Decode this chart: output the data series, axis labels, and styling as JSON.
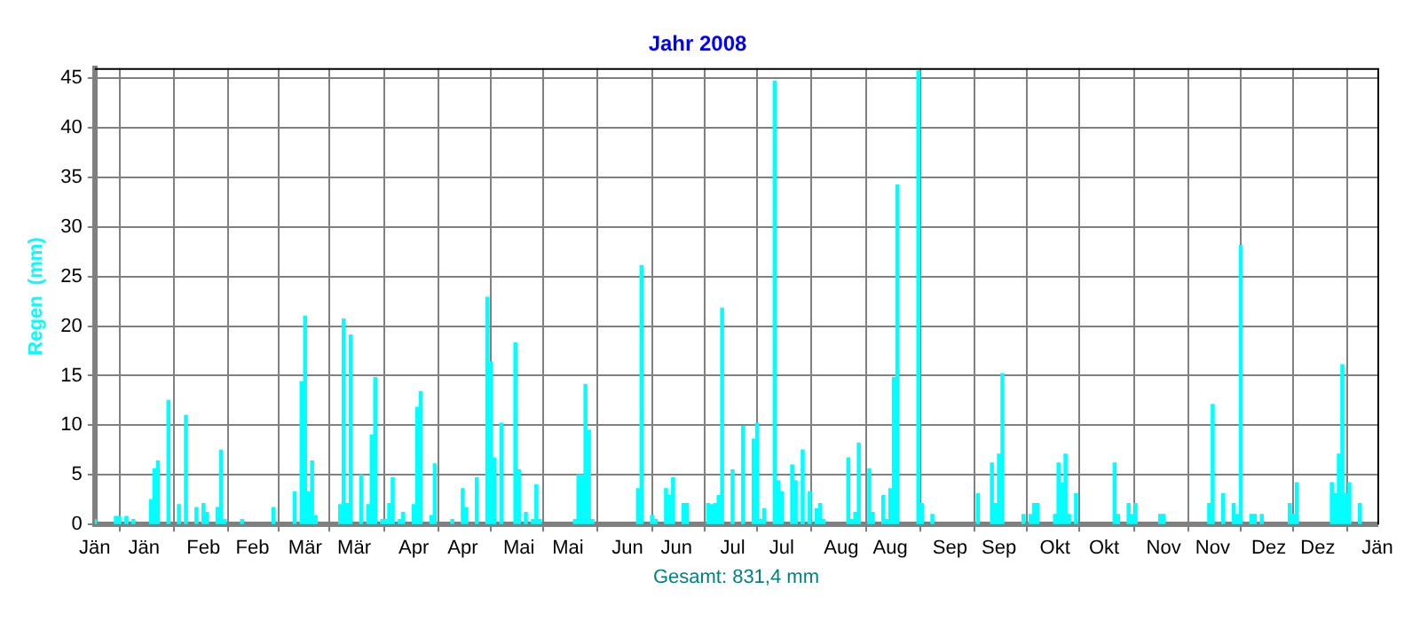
{
  "chart_data": {
    "type": "bar",
    "title": "Jahr 2008",
    "xlabel": "Gesamt: 831,4 mm",
    "ylabel": "Regen  (mm)",
    "x": [
      "2008-01-01",
      "2008-01-07",
      "2008-01-08",
      "2008-01-10",
      "2008-01-12",
      "2008-01-17",
      "2008-01-18",
      "2008-01-19",
      "2008-01-22",
      "2008-01-25",
      "2008-01-27",
      "2008-01-30",
      "2008-02-01",
      "2008-02-02",
      "2008-02-05",
      "2008-02-06",
      "2008-02-07",
      "2008-02-12",
      "2008-02-21",
      "2008-02-27",
      "2008-02-29",
      "2008-03-01",
      "2008-03-02",
      "2008-03-03",
      "2008-03-04",
      "2008-03-11",
      "2008-03-12",
      "2008-03-13",
      "2008-03-14",
      "2008-03-17",
      "2008-03-19",
      "2008-03-20",
      "2008-03-21",
      "2008-03-23",
      "2008-03-24",
      "2008-03-25",
      "2008-03-26",
      "2008-03-28",
      "2008-03-29",
      "2008-04-01",
      "2008-04-02",
      "2008-04-03",
      "2008-04-06",
      "2008-04-07",
      "2008-04-12",
      "2008-04-15",
      "2008-04-16",
      "2008-04-19",
      "2008-04-22",
      "2008-04-23",
      "2008-04-24",
      "2008-04-26",
      "2008-04-30",
      "2008-05-01",
      "2008-05-03",
      "2008-05-05",
      "2008-05-06",
      "2008-05-07",
      "2008-05-17",
      "2008-05-18",
      "2008-05-19",
      "2008-05-20",
      "2008-05-21",
      "2008-05-22",
      "2008-06-04",
      "2008-06-05",
      "2008-06-08",
      "2008-06-09",
      "2008-06-12",
      "2008-06-13",
      "2008-06-14",
      "2008-06-17",
      "2008-06-18",
      "2008-06-24",
      "2008-06-25",
      "2008-06-26",
      "2008-06-27",
      "2008-06-28",
      "2008-07-01",
      "2008-07-04",
      "2008-07-07",
      "2008-07-08",
      "2008-07-09",
      "2008-07-10",
      "2008-07-13",
      "2008-07-14",
      "2008-07-15",
      "2008-07-18",
      "2008-07-19",
      "2008-07-21",
      "2008-07-23",
      "2008-07-25",
      "2008-07-26",
      "2008-07-27",
      "2008-08-03",
      "2008-08-04",
      "2008-08-05",
      "2008-08-06",
      "2008-08-09",
      "2008-08-10",
      "2008-08-13",
      "2008-08-14",
      "2008-08-15",
      "2008-08-16",
      "2008-08-17",
      "2008-08-23",
      "2008-08-24",
      "2008-08-27",
      "2008-09-09",
      "2008-09-13",
      "2008-09-14",
      "2008-09-15",
      "2008-09-16",
      "2008-09-22",
      "2008-09-24",
      "2008-09-25",
      "2008-09-26",
      "2008-10-01",
      "2008-10-02",
      "2008-10-03",
      "2008-10-04",
      "2008-10-05",
      "2008-10-07",
      "2008-10-18",
      "2008-10-19",
      "2008-10-22",
      "2008-10-23",
      "2008-10-24",
      "2008-10-31",
      "2008-11-01",
      "2008-11-14",
      "2008-11-15",
      "2008-11-18",
      "2008-11-21",
      "2008-11-22",
      "2008-11-23",
      "2008-11-26",
      "2008-11-27",
      "2008-11-29",
      "2008-12-07",
      "2008-12-08",
      "2008-12-09",
      "2008-12-19",
      "2008-12-20",
      "2008-12-21",
      "2008-12-22",
      "2008-12-23",
      "2008-12-24",
      "2008-12-27"
    ],
    "values": [
      0.5,
      0.8,
      0.8,
      0.8,
      0.5,
      2.5,
      5.6,
      6.4,
      12.5,
      2,
      11,
      1.7,
      2.1,
      1.2,
      1.7,
      7.5,
      0.5,
      0.5,
      1.7,
      3.3,
      14.4,
      21,
      3.3,
      6.4,
      0.9,
      2,
      20.7,
      2.1,
      19.1,
      5,
      2,
      9,
      14.8,
      0.5,
      0.5,
      2.1,
      4.7,
      0.5,
      1.2,
      2,
      11.8,
      13.4,
      0.9,
      6.1,
      0.5,
      3.6,
      1.7,
      4.7,
      22.9,
      16.4,
      6.7,
      10.2,
      18.3,
      5.5,
      1.2,
      0.5,
      4,
      0.5,
      0.5,
      5,
      5,
      14.1,
      9.5,
      0.5,
      3.6,
      26.1,
      0.9,
      0.5,
      3.6,
      2.9,
      4.7,
      2.1,
      2.1,
      2.1,
      2,
      2.1,
      2.9,
      21.8,
      5.5,
      9.9,
      8.6,
      10.2,
      0.5,
      1.6,
      44.7,
      4.4,
      3.3,
      6,
      4.4,
      7.5,
      3.3,
      1.6,
      2.1,
      0.5,
      6.7,
      0.5,
      1.2,
      8.2,
      5.6,
      1.2,
      2.9,
      0.5,
      3.6,
      14.8,
      34.2,
      45.7,
      2.1,
      1,
      3.1,
      6.2,
      2.1,
      7.1,
      15.2,
      1,
      1,
      2.1,
      2.1,
      1,
      6.2,
      4.2,
      7.1,
      1,
      3.1,
      6.2,
      1,
      2.1,
      1,
      2.1,
      1,
      1,
      2.1,
      12.1,
      3.1,
      2.1,
      1,
      28.1,
      1,
      1,
      1,
      2.1,
      1,
      4.2,
      4.2,
      3.1,
      7.1,
      16.1,
      3.1,
      4.2,
      2.1
    ],
    "color": "#00ffff",
    "xlim": [
      "2008-01-01",
      "2009-01-01"
    ],
    "xticks": [
      {
        "value": "2008-01-01",
        "label": "Jän"
      },
      {
        "value": "2008-01-15",
        "label": "Jän"
      },
      {
        "value": "2008-02-01",
        "label": "Feb"
      },
      {
        "value": "2008-02-15",
        "label": "Feb"
      },
      {
        "value": "2008-03-01",
        "label": "Mär"
      },
      {
        "value": "2008-03-15",
        "label": "Mär"
      },
      {
        "value": "2008-04-01",
        "label": "Apr"
      },
      {
        "value": "2008-04-15",
        "label": "Apr"
      },
      {
        "value": "2008-05-01",
        "label": "Mai"
      },
      {
        "value": "2008-05-15",
        "label": "Mai"
      },
      {
        "value": "2008-06-01",
        "label": "Jun"
      },
      {
        "value": "2008-06-15",
        "label": "Jun"
      },
      {
        "value": "2008-07-01",
        "label": "Jul"
      },
      {
        "value": "2008-07-15",
        "label": "Jul"
      },
      {
        "value": "2008-08-01",
        "label": "Aug"
      },
      {
        "value": "2008-08-15",
        "label": "Aug"
      },
      {
        "value": "2008-09-01",
        "label": "Sep"
      },
      {
        "value": "2008-09-15",
        "label": "Sep"
      },
      {
        "value": "2008-10-01",
        "label": "Okt"
      },
      {
        "value": "2008-10-15",
        "label": "Okt"
      },
      {
        "value": "2008-11-01",
        "label": "Nov"
      },
      {
        "value": "2008-11-15",
        "label": "Nov"
      },
      {
        "value": "2008-12-01",
        "label": "Dez"
      },
      {
        "value": "2008-12-15",
        "label": "Dez"
      },
      {
        "value": "2009-01-01",
        "label": "Jän"
      }
    ],
    "ylim": [
      0,
      46
    ],
    "yticks": [
      0,
      5,
      10,
      15,
      20,
      25,
      30,
      35,
      40,
      45
    ],
    "grid": true,
    "legend": false
  }
}
